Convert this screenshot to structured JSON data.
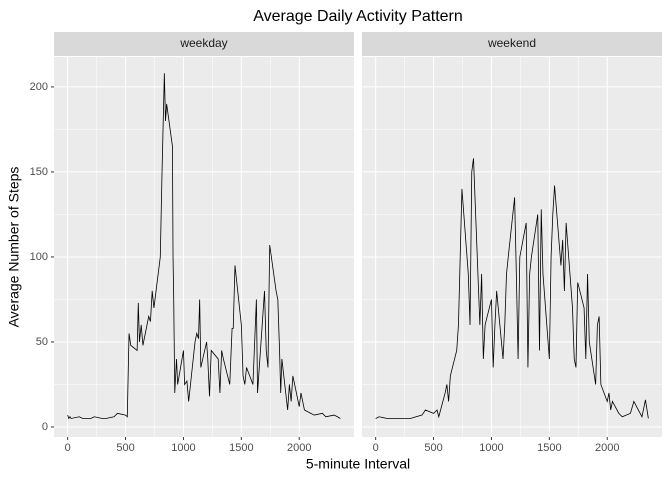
{
  "chart_data": {
    "type": "line",
    "title": "Average Daily Activity Pattern",
    "x_label": "5-minute Interval",
    "y_label": "Average Number of Steps",
    "xlim": [
      -118,
      2473
    ],
    "ylim": [
      -5.9,
      217.6
    ],
    "xticks": [
      0,
      500,
      1000,
      1500,
      2000
    ],
    "yticks": [
      0,
      50,
      100,
      150,
      200
    ],
    "grid": true,
    "facets": [
      {
        "name": "weekday",
        "color": "#000000",
        "x": [
          0,
          10,
          20,
          30,
          100,
          130,
          200,
          230,
          300,
          330,
          400,
          430,
          500,
          515,
          530,
          545,
          600,
          610,
          620,
          635,
          650,
          700,
          715,
          730,
          745,
          800,
          815,
          835,
          845,
          855,
          905,
          910,
          915,
          925,
          940,
          950,
          1000,
          1010,
          1030,
          1045,
          1100,
          1115,
          1130,
          1140,
          1150,
          1200,
          1210,
          1225,
          1240,
          1300,
          1315,
          1330,
          1345,
          1400,
          1420,
          1430,
          1445,
          1500,
          1515,
          1530,
          1545,
          1600,
          1615,
          1630,
          1640,
          1700,
          1715,
          1730,
          1745,
          1800,
          1815,
          1830,
          1840,
          1850,
          1900,
          1915,
          1930,
          1945,
          2000,
          2015,
          2030,
          2045,
          2100,
          2130,
          2200,
          2230,
          2300,
          2330,
          2355
        ],
        "values": [
          7,
          5,
          6,
          5,
          6,
          5,
          5,
          6,
          5,
          5,
          6,
          8,
          7,
          6,
          55,
          48,
          45,
          73,
          50,
          60,
          48,
          65,
          62,
          80,
          70,
          100,
          150,
          208,
          180,
          190,
          165,
          100,
          80,
          20,
          40,
          25,
          45,
          25,
          27,
          15,
          50,
          55,
          52,
          75,
          35,
          50,
          40,
          18,
          45,
          40,
          20,
          45,
          40,
          25,
          58,
          58,
          95,
          60,
          30,
          25,
          35,
          25,
          50,
          75,
          20,
          80,
          45,
          35,
          107,
          80,
          75,
          45,
          20,
          40,
          10,
          25,
          15,
          30,
          12,
          20,
          15,
          10,
          8,
          7,
          8,
          6,
          7,
          6,
          5
        ]
      },
      {
        "name": "weekend",
        "color": "#000000",
        "x": [
          0,
          30,
          100,
          200,
          300,
          400,
          430,
          500,
          530,
          545,
          600,
          615,
          630,
          645,
          700,
          715,
          730,
          745,
          800,
          815,
          830,
          845,
          900,
          915,
          930,
          945,
          1000,
          1015,
          1030,
          1045,
          1100,
          1115,
          1130,
          1145,
          1200,
          1215,
          1230,
          1245,
          1300,
          1315,
          1330,
          1345,
          1400,
          1415,
          1430,
          1445,
          1500,
          1515,
          1530,
          1545,
          1600,
          1615,
          1630,
          1645,
          1700,
          1715,
          1730,
          1745,
          1800,
          1815,
          1830,
          1845,
          1900,
          1915,
          1930,
          1945,
          2000,
          2015,
          2030,
          2045,
          2100,
          2130,
          2200,
          2230,
          2300,
          2330,
          2355
        ],
        "values": [
          5,
          6,
          5,
          5,
          5,
          7,
          10,
          8,
          10,
          6,
          20,
          25,
          15,
          30,
          45,
          60,
          100,
          140,
          90,
          60,
          150,
          158,
          60,
          90,
          40,
          60,
          75,
          35,
          60,
          80,
          40,
          60,
          90,
          100,
          135,
          90,
          40,
          100,
          120,
          35,
          90,
          100,
          125,
          45,
          128,
          90,
          40,
          100,
          125,
          142,
          95,
          110,
          80,
          120,
          70,
          40,
          35,
          85,
          70,
          40,
          90,
          50,
          25,
          60,
          65,
          25,
          15,
          20,
          10,
          15,
          8,
          6,
          8,
          15,
          6,
          16,
          5
        ]
      }
    ]
  }
}
